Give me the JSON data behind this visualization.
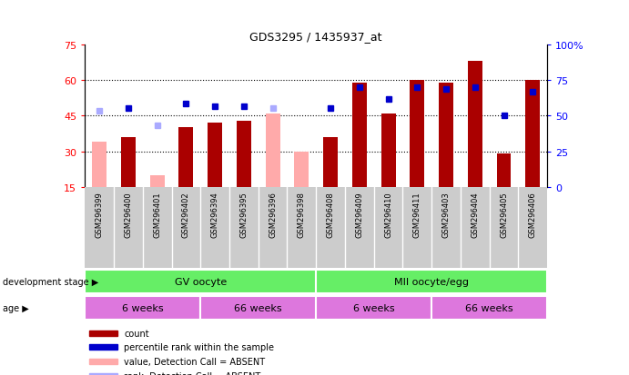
{
  "title": "GDS3295 / 1435937_at",
  "samples": [
    "GSM296399",
    "GSM296400",
    "GSM296401",
    "GSM296402",
    "GSM296394",
    "GSM296395",
    "GSM296396",
    "GSM296398",
    "GSM296408",
    "GSM296409",
    "GSM296410",
    "GSM296411",
    "GSM296403",
    "GSM296404",
    "GSM296405",
    "GSM296406"
  ],
  "count": [
    null,
    36,
    null,
    40,
    42,
    43,
    null,
    null,
    36,
    59,
    46,
    60,
    59,
    68,
    29,
    60
  ],
  "count_absent": [
    34,
    null,
    20,
    null,
    null,
    null,
    46,
    30,
    null,
    null,
    null,
    null,
    null,
    null,
    null,
    null
  ],
  "percentile": [
    null,
    48,
    null,
    50,
    49,
    49,
    null,
    null,
    48,
    null,
    null,
    null,
    null,
    null,
    45,
    null
  ],
  "percentile_absent": [
    47,
    null,
    41,
    null,
    null,
    null,
    48,
    null,
    null,
    null,
    null,
    null,
    null,
    null,
    null,
    null
  ],
  "percentile_present_high": [
    null,
    null,
    null,
    null,
    null,
    null,
    null,
    null,
    null,
    57,
    52,
    57,
    56,
    57,
    null,
    55
  ],
  "ylim_left": [
    15,
    75
  ],
  "ylim_right": [
    0,
    100
  ],
  "yticks_left": [
    15,
    30,
    45,
    60,
    75
  ],
  "yticks_right": [
    0,
    25,
    50,
    75,
    100
  ],
  "bar_color_present": "#aa0000",
  "bar_color_absent": "#ffaaaa",
  "dot_color_present": "#0000cc",
  "dot_color_absent": "#aaaaff",
  "stage_groups": [
    {
      "label": "GV oocyte",
      "start": 0,
      "end": 8,
      "color": "#66ee66"
    },
    {
      "label": "MII oocyte/egg",
      "start": 8,
      "end": 16,
      "color": "#66ee66"
    }
  ],
  "age_groups": [
    {
      "label": "6 weeks",
      "start": 0,
      "end": 4,
      "color": "#dd77dd"
    },
    {
      "label": "66 weeks",
      "start": 4,
      "end": 8,
      "color": "#dd77dd"
    },
    {
      "label": "6 weeks",
      "start": 8,
      "end": 12,
      "color": "#dd77dd"
    },
    {
      "label": "66 weeks",
      "start": 12,
      "end": 16,
      "color": "#dd77dd"
    }
  ],
  "legend_items": [
    {
      "label": "count",
      "color": "#aa0000"
    },
    {
      "label": "percentile rank within the sample",
      "color": "#0000cc"
    },
    {
      "label": "value, Detection Call = ABSENT",
      "color": "#ffaaaa"
    },
    {
      "label": "rank, Detection Call = ABSENT",
      "color": "#aaaaff"
    }
  ],
  "gridlines_at": [
    30,
    45,
    60
  ],
  "bar_width": 0.5
}
